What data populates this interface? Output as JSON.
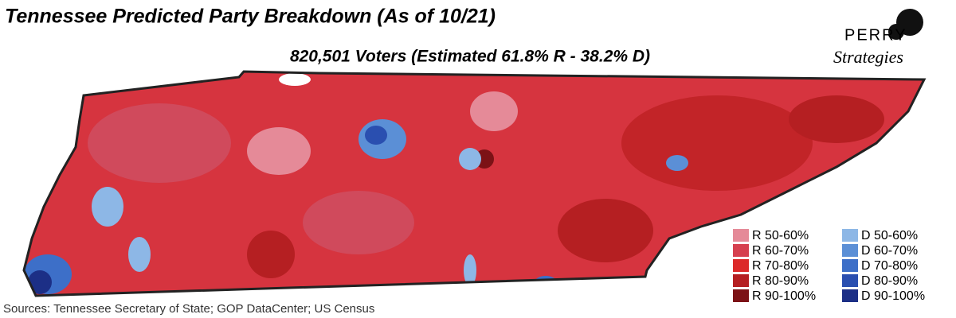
{
  "header": {
    "title": "Tennessee Predicted Party Breakdown (As of 10/21)",
    "subtitle": "820,501 Voters (Estimated 61.8% R - 38.2% D)"
  },
  "logo": {
    "name": "PERRY",
    "tagline": "Strategies"
  },
  "legend": {
    "columns": [
      [
        {
          "label": "R 50-60%",
          "color": "#e58a98"
        },
        {
          "label": "R 60-70%",
          "color": "#d6404f"
        },
        {
          "label": "R 70-80%",
          "color": "#dc2a2a"
        },
        {
          "label": "R 80-90%",
          "color": "#b51f22"
        },
        {
          "label": "R 90-100%",
          "color": "#7c1216"
        }
      ],
      [
        {
          "label": "D 50-60%",
          "color": "#8db7e6"
        },
        {
          "label": "D 60-70%",
          "color": "#5b8fd6"
        },
        {
          "label": "D 70-80%",
          "color": "#3d6fc8"
        },
        {
          "label": "D 80-90%",
          "color": "#2a4fb0"
        },
        {
          "label": "D 90-100%",
          "color": "#1c2f86"
        }
      ]
    ]
  },
  "source": "Sources: Tennessee Secretary of State; GOP DataCenter; US Census"
}
